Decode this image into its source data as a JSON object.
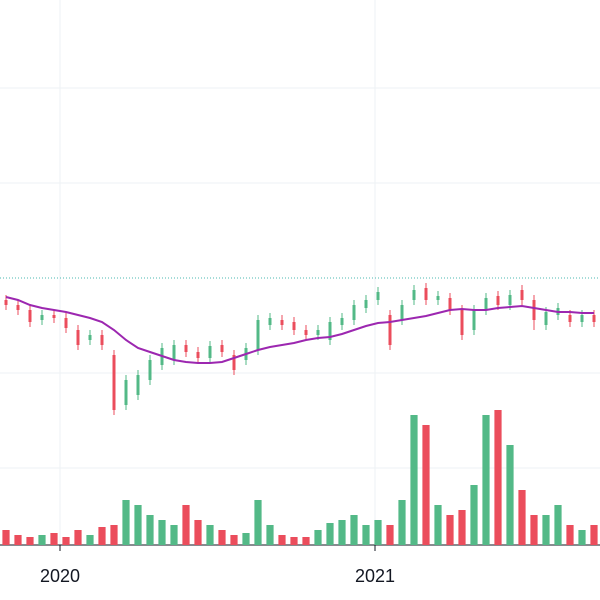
{
  "chart_data": {
    "type": "candlestick",
    "x": [
      0,
      1,
      2,
      3,
      4,
      5,
      6,
      7,
      8,
      9,
      10,
      11,
      12,
      13,
      14,
      15,
      16,
      17,
      18,
      19,
      20,
      21,
      22,
      23,
      24,
      25,
      26,
      27,
      28,
      29,
      30,
      31,
      32,
      33,
      34,
      35,
      36,
      37,
      38,
      39,
      40,
      41,
      42,
      43,
      44,
      45,
      46,
      47,
      48,
      49
    ],
    "xlim": [
      -0.5,
      49.5
    ],
    "xticks": [
      {
        "value": 4.5,
        "label": "2020"
      },
      {
        "value": 30.75,
        "label": "2021"
      }
    ],
    "ylim": [
      0,
      545
    ],
    "grid_y": [
      77,
      172,
      362,
      457
    ],
    "price_line": 267,
    "up_color": "#53b987",
    "down_color": "#eb4d5c",
    "open": [
      245,
      240,
      235,
      225,
      230,
      227,
      215,
      205,
      210,
      190,
      140,
      150,
      165,
      180,
      185,
      200,
      193,
      187,
      200,
      190,
      185,
      195,
      220,
      225,
      223,
      215,
      210,
      205,
      220,
      225,
      237,
      245,
      230,
      225,
      245,
      257,
      245,
      247,
      235,
      215,
      235,
      249,
      240,
      255,
      245,
      220,
      230,
      230,
      223,
      230
    ],
    "high": [
      250,
      245,
      240,
      235,
      235,
      232,
      220,
      215,
      215,
      195,
      170,
      175,
      190,
      202,
      205,
      205,
      198,
      204,
      205,
      195,
      202,
      230,
      232,
      230,
      228,
      220,
      220,
      228,
      232,
      245,
      250,
      258,
      235,
      245,
      260,
      262,
      254,
      252,
      240,
      240,
      252,
      254,
      255,
      260,
      250,
      238,
      242,
      235,
      235,
      235
    ],
    "low": [
      235,
      230,
      218,
      220,
      222,
      212,
      195,
      200,
      195,
      130,
      135,
      145,
      160,
      175,
      180,
      188,
      182,
      182,
      188,
      170,
      180,
      190,
      215,
      215,
      210,
      205,
      205,
      200,
      215,
      220,
      232,
      240,
      195,
      220,
      240,
      240,
      240,
      230,
      205,
      210,
      230,
      235,
      235,
      240,
      215,
      215,
      225,
      218,
      218,
      218
    ],
    "close": [
      240,
      235,
      223,
      230,
      227,
      217,
      200,
      210,
      200,
      135,
      165,
      170,
      185,
      197,
      200,
      193,
      187,
      199,
      193,
      175,
      197,
      225,
      227,
      220,
      215,
      210,
      215,
      223,
      227,
      240,
      245,
      253,
      200,
      240,
      255,
      245,
      249,
      235,
      210,
      235,
      247,
      240,
      250,
      245,
      225,
      233,
      237,
      223,
      230,
      223
    ],
    "ma": {
      "color": "#9c27b0",
      "values": [
        248,
        245,
        240,
        237,
        235,
        233,
        230,
        227,
        223,
        215,
        205,
        197,
        193,
        189,
        185,
        183,
        182,
        182,
        183,
        187,
        191,
        195,
        198,
        200,
        202,
        205,
        207,
        208,
        211,
        215,
        219,
        222,
        223,
        225,
        227,
        229,
        232,
        235,
        236,
        235,
        235,
        237,
        238,
        239,
        237,
        235,
        233,
        233,
        232,
        232
      ]
    },
    "volume": {
      "values": [
        15,
        10,
        8,
        10,
        12,
        8,
        15,
        10,
        18,
        20,
        45,
        40,
        30,
        25,
        20,
        40,
        25,
        20,
        15,
        10,
        12,
        45,
        20,
        10,
        8,
        8,
        15,
        22,
        25,
        30,
        20,
        25,
        20,
        45,
        130,
        120,
        40,
        30,
        35,
        60,
        130,
        135,
        100,
        55,
        30,
        30,
        40,
        20,
        15,
        20
      ]
    }
  }
}
